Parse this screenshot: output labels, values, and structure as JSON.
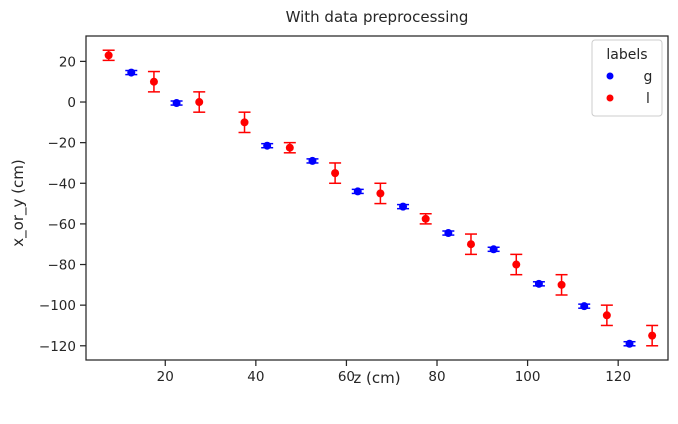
{
  "chart_data": {
    "type": "scatter",
    "title": "With data preprocessing",
    "xlabel": "z (cm)",
    "ylabel": "x_or_y (cm)",
    "xlim": [
      2.5,
      131
    ],
    "ylim": [
      -127,
      32.5
    ],
    "xticks": [
      20,
      40,
      60,
      80,
      100,
      120
    ],
    "yticks": [
      20,
      0,
      -20,
      -40,
      -60,
      -80,
      -100,
      -120
    ],
    "tick_labels_x": [
      "20",
      "40",
      "60",
      "80",
      "100",
      "120"
    ],
    "tick_labels_y": [
      "20",
      "0",
      "−20",
      "−40",
      "−60",
      "−80",
      "−100",
      "−120"
    ],
    "grid": false,
    "error_bars": true,
    "legend": {
      "title": "labels",
      "placement": "top-right",
      "entries": [
        {
          "label": "g",
          "color": "#0000ff"
        },
        {
          "label": "l",
          "color": "#ff0000"
        }
      ]
    },
    "series": [
      {
        "name": "g",
        "color": "#0000ff",
        "points": [
          {
            "x": 12.5,
            "y": 14.5,
            "err": 1.0
          },
          {
            "x": 22.5,
            "y": -0.5,
            "err": 1.0
          },
          {
            "x": 42.5,
            "y": -21.5,
            "err": 1.0
          },
          {
            "x": 52.5,
            "y": -29.0,
            "err": 1.0
          },
          {
            "x": 62.5,
            "y": -44.0,
            "err": 1.0
          },
          {
            "x": 72.5,
            "y": -51.5,
            "err": 1.0
          },
          {
            "x": 82.5,
            "y": -64.5,
            "err": 1.0
          },
          {
            "x": 92.5,
            "y": -72.5,
            "err": 1.0
          },
          {
            "x": 102.5,
            "y": -89.5,
            "err": 1.0
          },
          {
            "x": 112.5,
            "y": -100.5,
            "err": 1.0
          },
          {
            "x": 122.5,
            "y": -119.0,
            "err": 1.0
          }
        ]
      },
      {
        "name": "l",
        "color": "#ff0000",
        "points": [
          {
            "x": 7.5,
            "y": 23.0,
            "err": 2.5
          },
          {
            "x": 17.5,
            "y": 10.0,
            "err": 5.0
          },
          {
            "x": 27.5,
            "y": 0.0,
            "err": 5.0
          },
          {
            "x": 37.5,
            "y": -10.0,
            "err": 5.0
          },
          {
            "x": 47.5,
            "y": -22.5,
            "err": 2.5
          },
          {
            "x": 57.5,
            "y": -35.0,
            "err": 5.0
          },
          {
            "x": 67.5,
            "y": -45.0,
            "err": 5.0
          },
          {
            "x": 77.5,
            "y": -57.5,
            "err": 2.5
          },
          {
            "x": 87.5,
            "y": -70.0,
            "err": 5.0
          },
          {
            "x": 97.5,
            "y": -80.0,
            "err": 5.0
          },
          {
            "x": 107.5,
            "y": -90.0,
            "err": 5.0
          },
          {
            "x": 117.5,
            "y": -105.0,
            "err": 5.0
          },
          {
            "x": 127.5,
            "y": -115.0,
            "err": 5.0
          }
        ]
      }
    ]
  }
}
